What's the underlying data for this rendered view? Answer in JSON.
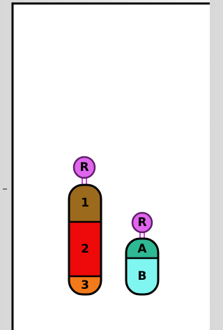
{
  "stacks": [
    {
      "cap": "R",
      "segments": [
        {
          "label": "1"
        },
        {
          "label": "2"
        },
        {
          "label": "3"
        }
      ]
    },
    {
      "cap": "R",
      "segments": [
        {
          "label": "A"
        },
        {
          "label": "B"
        }
      ]
    }
  ]
}
